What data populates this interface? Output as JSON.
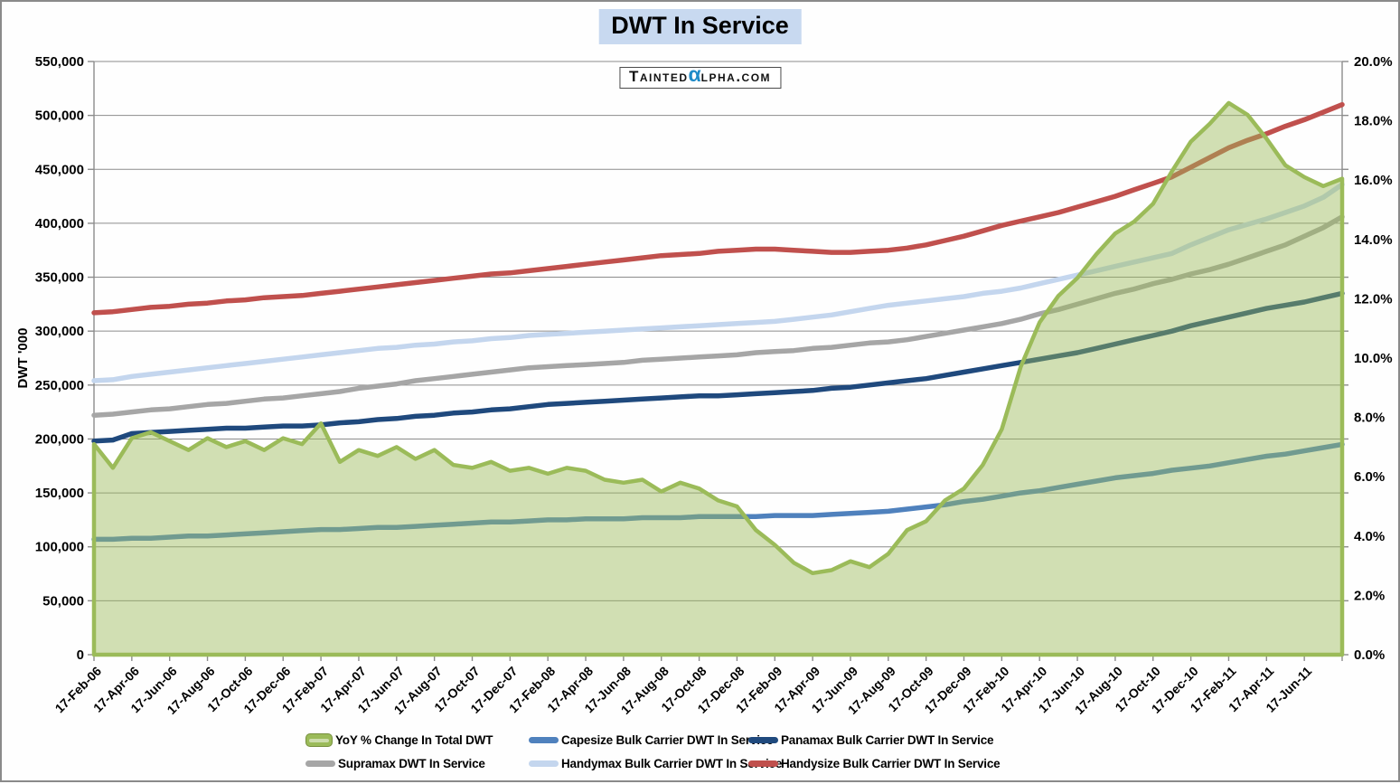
{
  "title": "DWT In Service",
  "watermark": {
    "part1": "Tainted",
    "part2": "α",
    "part3": "lpha.com",
    "alpha_color": "#1E8BC8"
  },
  "colors": {
    "gridline": "#8C8C8C",
    "axis": "#8C8C8C",
    "tick": "#8C8C8C",
    "title_highlight": "#C8D9F0",
    "frame_border": "#8A8A8A"
  },
  "chart_data": {
    "type": "area+line",
    "title": "DWT In Service",
    "ylabel_left": "DWT '000",
    "grid": true,
    "legend_position": "bottom",
    "axes": {
      "left": {
        "min": 0,
        "max": 550000,
        "tick_step": 50000,
        "tick_labels": [
          "550,000",
          "500,000",
          "450,000",
          "400,000",
          "350,000",
          "300,000",
          "250,000",
          "200,000",
          "150,000",
          "100,000",
          "50,000",
          "0"
        ]
      },
      "right": {
        "min": 0,
        "max": 20,
        "tick_step": 2,
        "tick_labels": [
          "20.0%",
          "18.0%",
          "16.0%",
          "14.0%",
          "12.0%",
          "10.0%",
          "8.0%",
          "6.0%",
          "4.0%",
          "2.0%",
          "0.0%"
        ]
      },
      "x": {
        "points": 67,
        "months_per_point": 1,
        "ticks_every_points": 2,
        "tick_labels": [
          "17-Feb-06",
          "17-Apr-06",
          "17-Jun-06",
          "17-Aug-06",
          "17-Oct-06",
          "17-Dec-06",
          "17-Feb-07",
          "17-Apr-07",
          "17-Jun-07",
          "17-Aug-07",
          "17-Oct-07",
          "17-Dec-07",
          "17-Feb-08",
          "17-Apr-08",
          "17-Jun-08",
          "17-Aug-08",
          "17-Oct-08",
          "17-Dec-08",
          "17-Feb-09",
          "17-Apr-09",
          "17-Jun-09",
          "17-Aug-09",
          "17-Oct-09",
          "17-Dec-09",
          "17-Feb-10",
          "17-Apr-10",
          "17-Jun-10",
          "17-Aug-10",
          "17-Oct-10",
          "17-Dec-10",
          "17-Feb-11",
          "17-Apr-11",
          "17-Jun-11"
        ]
      }
    },
    "series": [
      {
        "name": "YoY % Change In Total DWT",
        "type": "area",
        "axis": "right",
        "color": "#9BBB59",
        "fill_opacity": 0.45,
        "values": [
          7.1,
          6.3,
          7.3,
          7.5,
          7.2,
          6.9,
          7.3,
          7.0,
          7.2,
          6.9,
          7.3,
          7.1,
          7.8,
          6.5,
          6.9,
          6.7,
          7.0,
          6.6,
          6.9,
          6.4,
          6.3,
          6.5,
          6.2,
          6.3,
          6.1,
          6.3,
          6.2,
          5.9,
          5.8,
          5.9,
          5.5,
          5.8,
          5.6,
          5.2,
          5.0,
          4.2,
          3.7,
          3.1,
          2.75,
          2.85,
          3.15,
          2.95,
          3.4,
          4.2,
          4.5,
          5.2,
          5.6,
          6.4,
          7.6,
          9.7,
          11.2,
          12.1,
          12.7,
          13.5,
          14.2,
          14.6,
          15.2,
          16.3,
          17.3,
          17.9,
          18.6,
          18.2,
          17.4,
          16.5,
          16.1,
          15.8,
          16.05
        ]
      },
      {
        "name": "Capesize Bulk Carrier DWT In Service",
        "type": "line",
        "axis": "left",
        "color": "#4F81BD",
        "values": [
          107000,
          107000,
          108000,
          108000,
          109000,
          110000,
          110000,
          111000,
          112000,
          113000,
          114000,
          115000,
          116000,
          116000,
          117000,
          118000,
          118000,
          119000,
          120000,
          121000,
          122000,
          123000,
          123000,
          124000,
          125000,
          125000,
          126000,
          126000,
          126000,
          127000,
          127000,
          127000,
          128000,
          128000,
          128000,
          128000,
          129000,
          129000,
          129000,
          130000,
          131000,
          132000,
          133000,
          135000,
          137000,
          139000,
          142000,
          144000,
          147000,
          150000,
          152000,
          155000,
          158000,
          161000,
          164000,
          166000,
          168000,
          171000,
          173000,
          175000,
          178000,
          181000,
          184000,
          186000,
          189000,
          192000,
          195000
        ]
      },
      {
        "name": "Panamax Bulk Carrier DWT In Service",
        "type": "line",
        "axis": "left",
        "color": "#1F497D",
        "values": [
          198000,
          199000,
          205000,
          206000,
          207000,
          208000,
          209000,
          210000,
          210000,
          211000,
          212000,
          212000,
          213000,
          215000,
          216000,
          218000,
          219000,
          221000,
          222000,
          224000,
          225000,
          227000,
          228000,
          230000,
          232000,
          233000,
          234000,
          235000,
          236000,
          237000,
          238000,
          239000,
          240000,
          240000,
          241000,
          242000,
          243000,
          244000,
          245000,
          247000,
          248000,
          250000,
          252000,
          254000,
          256000,
          259000,
          262000,
          265000,
          268000,
          271000,
          274000,
          277000,
          280000,
          284000,
          288000,
          292000,
          296000,
          300000,
          305000,
          309000,
          313000,
          317000,
          321000,
          324000,
          327000,
          331000,
          335000
        ]
      },
      {
        "name": "Supramax DWT In Service",
        "type": "line",
        "axis": "left",
        "color": "#A6A6A6",
        "values": [
          222000,
          223000,
          225000,
          227000,
          228000,
          230000,
          232000,
          233000,
          235000,
          237000,
          238000,
          240000,
          242000,
          244000,
          247000,
          249000,
          251000,
          254000,
          256000,
          258000,
          260000,
          262000,
          264000,
          266000,
          267000,
          268000,
          269000,
          270000,
          271000,
          273000,
          274000,
          275000,
          276000,
          277000,
          278000,
          280000,
          281000,
          282000,
          284000,
          285000,
          287000,
          289000,
          290000,
          292000,
          295000,
          298000,
          301000,
          304000,
          307000,
          311000,
          316000,
          320000,
          325000,
          330000,
          335000,
          339000,
          344000,
          348000,
          353000,
          357000,
          362000,
          368000,
          374000,
          380000,
          388000,
          396000,
          406000
        ]
      },
      {
        "name": "Handymax Bulk Carrier DWT In Service",
        "type": "line",
        "axis": "left",
        "color": "#C4D6EE",
        "values": [
          254000,
          255000,
          258000,
          260000,
          262000,
          264000,
          266000,
          268000,
          270000,
          272000,
          274000,
          276000,
          278000,
          280000,
          282000,
          284000,
          285000,
          287000,
          288000,
          290000,
          291000,
          293000,
          294000,
          296000,
          297000,
          298000,
          299000,
          300000,
          301000,
          302000,
          303000,
          304000,
          305000,
          306000,
          307000,
          308000,
          309000,
          311000,
          313000,
          315000,
          318000,
          321000,
          324000,
          326000,
          328000,
          330000,
          332000,
          335000,
          337000,
          340000,
          344000,
          348000,
          352000,
          356000,
          360000,
          364000,
          368000,
          372000,
          380000,
          387000,
          394000,
          399000,
          404000,
          410000,
          416000,
          424000,
          436000
        ]
      },
      {
        "name": "Handysize Bulk Carrier DWT In Service",
        "type": "line",
        "axis": "left",
        "color": "#C0504D",
        "values": [
          317000,
          318000,
          320000,
          322000,
          323000,
          325000,
          326000,
          328000,
          329000,
          331000,
          332000,
          333000,
          335000,
          337000,
          339000,
          341000,
          343000,
          345000,
          347000,
          349000,
          351000,
          353000,
          354000,
          356000,
          358000,
          360000,
          362000,
          364000,
          366000,
          368000,
          370000,
          371000,
          372000,
          374000,
          375000,
          376000,
          376000,
          375000,
          374000,
          373000,
          373000,
          374000,
          375000,
          377000,
          380000,
          384000,
          388000,
          393000,
          398000,
          402000,
          406000,
          410000,
          415000,
          420000,
          425000,
          431000,
          437000,
          443000,
          452000,
          461000,
          470000,
          477000,
          483000,
          490000,
          496000,
          503000,
          510000
        ]
      }
    ]
  }
}
